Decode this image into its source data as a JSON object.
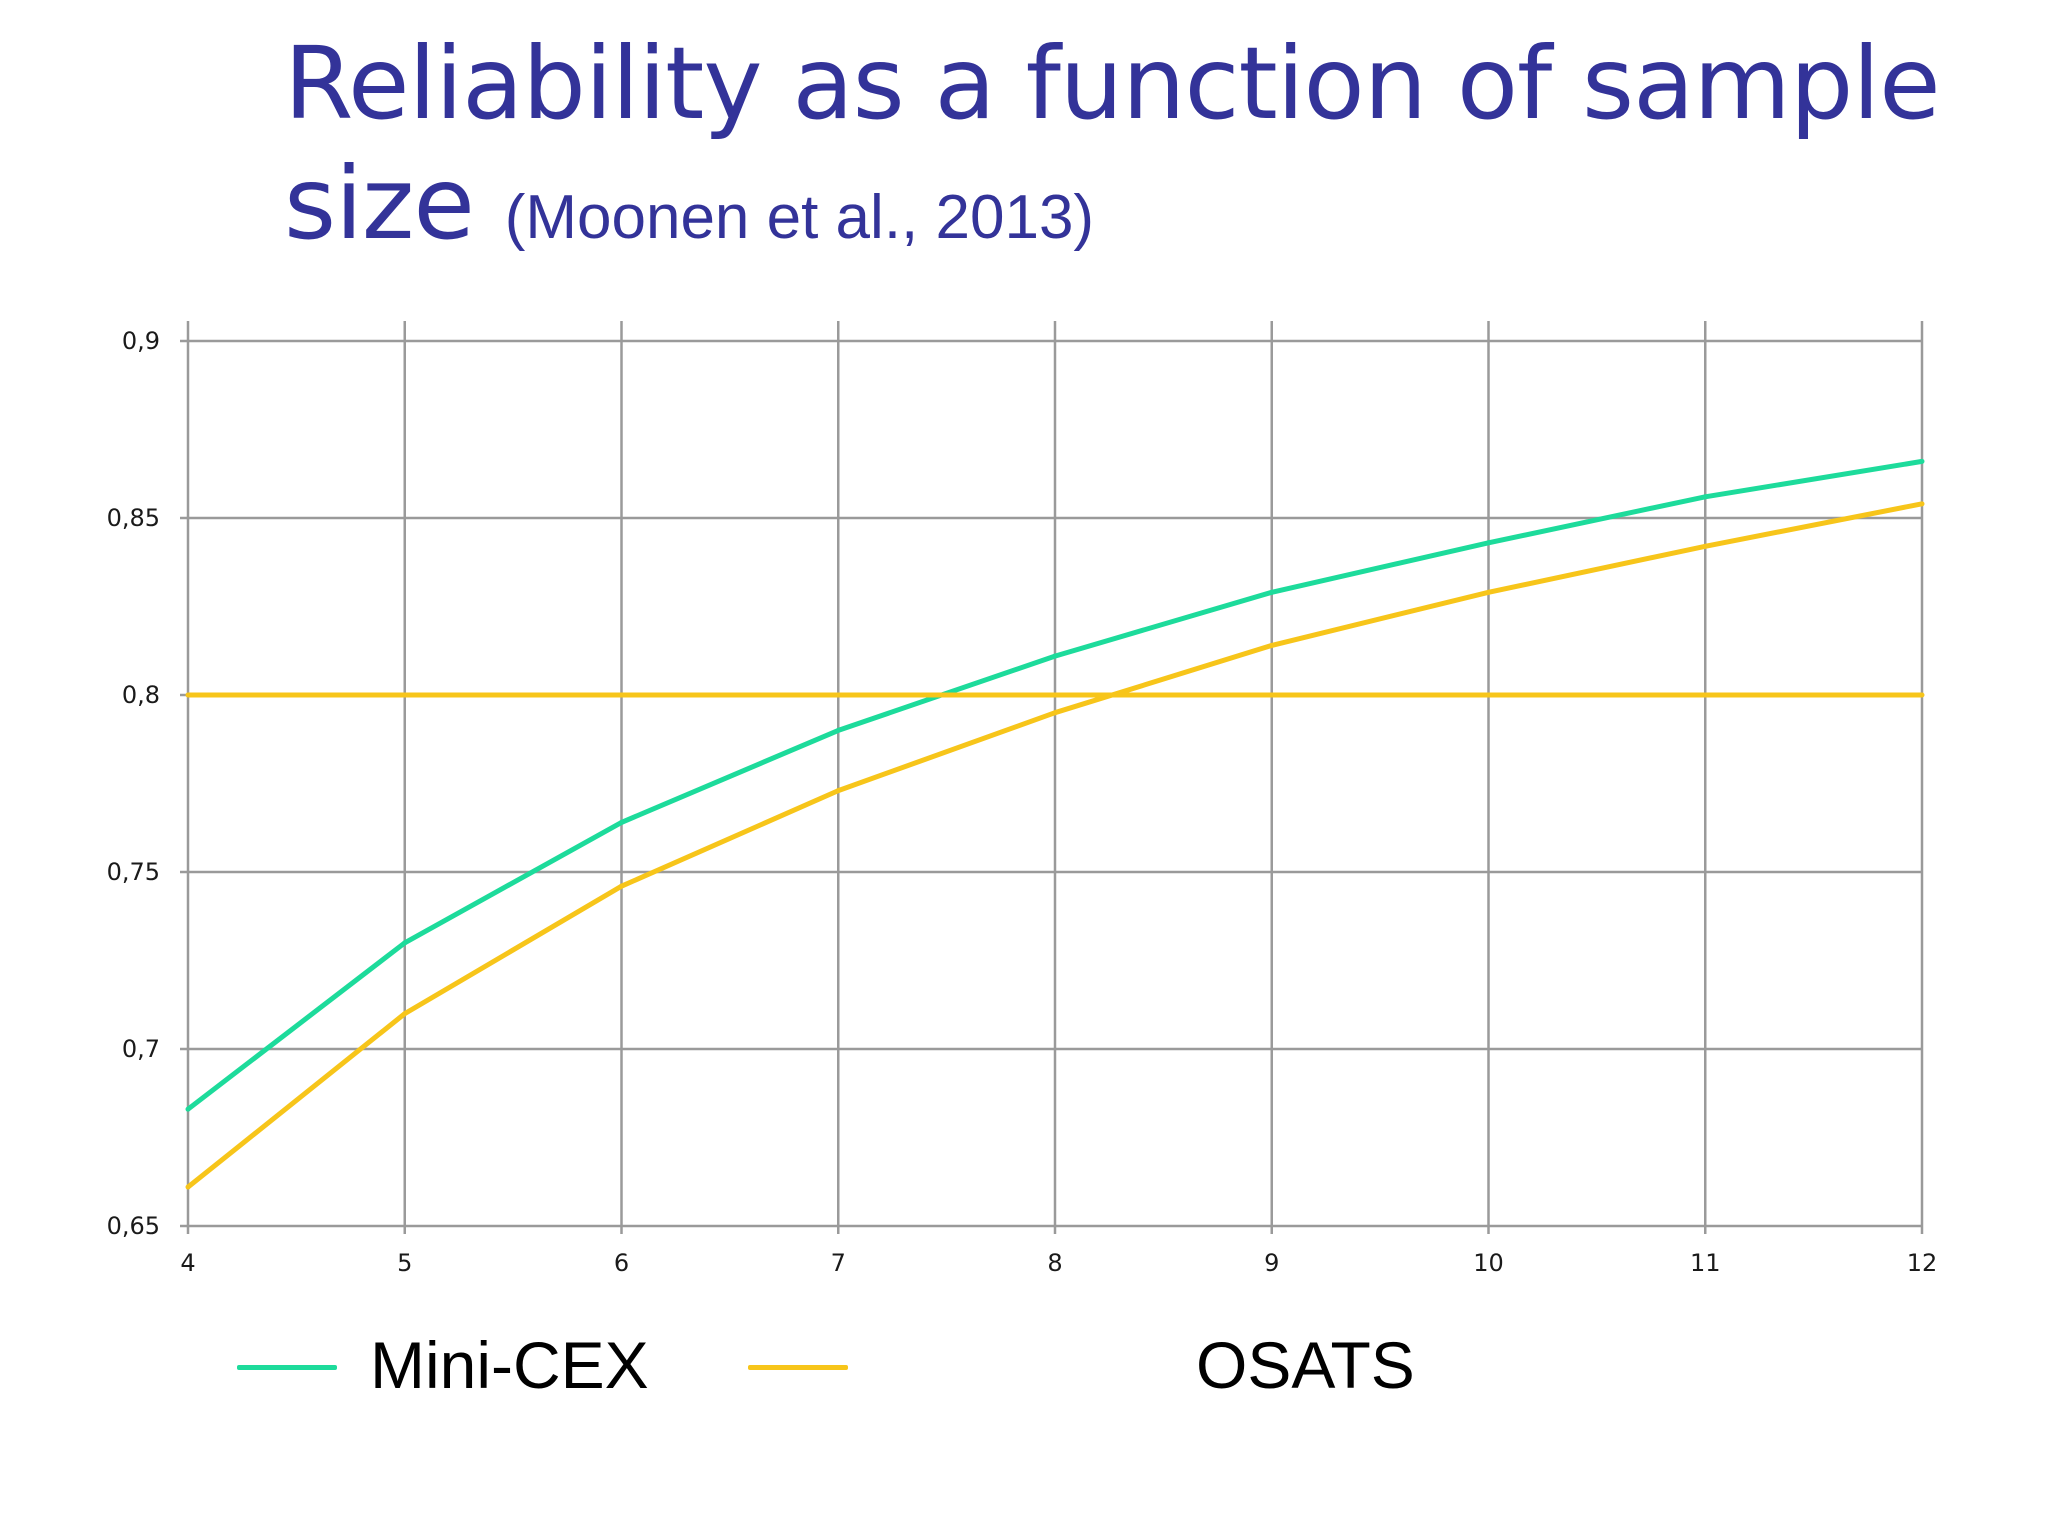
{
  "title": {
    "main": "Reliability as a function of sample size",
    "citation": "(Moonen et al., 2013)"
  },
  "colors": {
    "title": "#333399",
    "mini_cex": "#1DDB9B",
    "osats": "#F7C51A",
    "threshold": "#F7C51A",
    "grid": "#9A9A9A"
  },
  "chart_data": {
    "type": "line",
    "title": "",
    "xlabel": "",
    "ylabel": "",
    "x": [
      4,
      5,
      6,
      7,
      8,
      9,
      10,
      11,
      12
    ],
    "xlim": [
      4,
      12
    ],
    "ylim": [
      0.65,
      0.9
    ],
    "x_ticks": [
      "4",
      "5",
      "6",
      "7",
      "8",
      "9",
      "10",
      "11",
      "12"
    ],
    "y_ticks": [
      {
        "value": 0.65,
        "label": "0,65"
      },
      {
        "value": 0.7,
        "label": "0,7"
      },
      {
        "value": 0.75,
        "label": "0,75"
      },
      {
        "value": 0.8,
        "label": "0,8"
      },
      {
        "value": 0.85,
        "label": "0,85"
      },
      {
        "value": 0.9,
        "label": "0,9"
      }
    ],
    "grid": true,
    "series": [
      {
        "key": "mini_cex",
        "name": "Mini-CEX",
        "color": "#1DDB9B",
        "values": [
          0.683,
          0.73,
          0.764,
          0.79,
          0.811,
          0.829,
          0.843,
          0.856,
          0.866
        ]
      },
      {
        "key": "osats",
        "name": "OSATS",
        "color": "#F7C51A",
        "values": [
          0.661,
          0.71,
          0.746,
          0.773,
          0.795,
          0.814,
          0.829,
          0.842,
          0.854
        ]
      },
      {
        "key": "threshold",
        "name": "",
        "color": "#F7C51A",
        "values": [
          0.8,
          0.8,
          0.8,
          0.8,
          0.8,
          0.8,
          0.8,
          0.8,
          0.8
        ]
      }
    ]
  },
  "legend": [
    {
      "label": "Mini-CEX",
      "color": "#1DDB9B"
    },
    {
      "label": "OSATS",
      "color": "#F7C51A"
    }
  ]
}
